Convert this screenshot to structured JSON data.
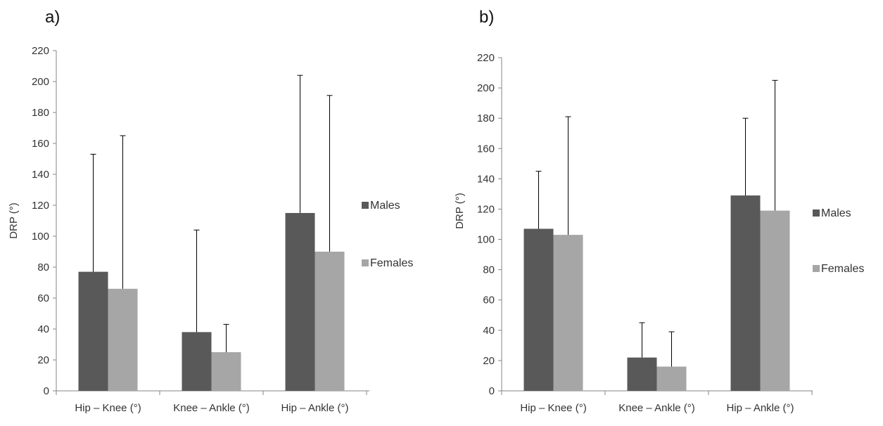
{
  "chart_data": [
    {
      "type": "bar",
      "panel_label": "a)",
      "ylabel": "DRP (°)",
      "ylim": [
        0,
        220
      ],
      "yticks": [
        "0",
        "20",
        "40",
        "60",
        "80",
        "100",
        "120",
        "140",
        "160",
        "180",
        "200",
        "220"
      ],
      "categories": [
        "Hip – Knee (°)",
        "Knee – Ankle (°)",
        "Hip – Ankle (°)"
      ],
      "series": [
        {
          "name": "Males",
          "color": "#595959",
          "values": [
            77,
            38,
            115
          ],
          "errors": [
            76,
            66,
            89
          ]
        },
        {
          "name": "Females",
          "color": "#a6a6a6",
          "values": [
            66,
            25,
            90
          ],
          "errors": [
            99,
            18,
            101
          ]
        }
      ],
      "legend": "right",
      "grid": false
    },
    {
      "type": "bar",
      "panel_label": "b)",
      "ylabel": "DRP (°)",
      "ylim": [
        0,
        220
      ],
      "yticks": [
        "0",
        "20",
        "40",
        "60",
        "80",
        "100",
        "120",
        "140",
        "160",
        "180",
        "200",
        "220"
      ],
      "categories": [
        "Hip – Knee (°)",
        "Knee – Ankle (°)",
        "Hip – Ankle (°)"
      ],
      "series": [
        {
          "name": "Males",
          "color": "#595959",
          "values": [
            107,
            22,
            129
          ],
          "errors": [
            38,
            23,
            51
          ]
        },
        {
          "name": "Females",
          "color": "#a6a6a6",
          "values": [
            103,
            16,
            119
          ],
          "errors": [
            78,
            23,
            86
          ]
        }
      ],
      "legend": "right",
      "grid": false
    }
  ]
}
